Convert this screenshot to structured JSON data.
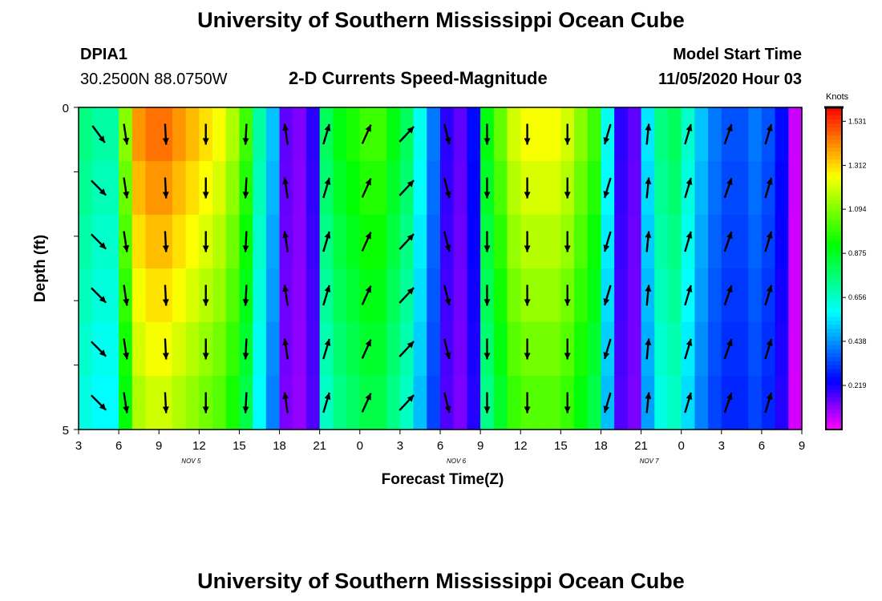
{
  "page": {
    "title_top": "University of Southern Mississippi Ocean Cube",
    "title_bottom": "University of Southern Mississippi Ocean Cube",
    "station": "DPIA1",
    "coords": "30.2500N 88.0750W",
    "plot_title": "2-D Currents Speed-Magnitude",
    "model_start_label": "Model Start Time",
    "model_start_value": "11/05/2020 Hour 03"
  },
  "chart_data": {
    "type": "heatmap",
    "title": "2-D Currents Speed-Magnitude",
    "xlabel": "Forecast Time(Z)",
    "ylabel": "Depth (ft)",
    "ylim": [
      0,
      5
    ],
    "y_tick_labels": [
      "0",
      "5"
    ],
    "x_tick_labels": [
      "3",
      "6",
      "9",
      "12",
      "15",
      "18",
      "21",
      "0",
      "3",
      "6",
      "9",
      "12",
      "15",
      "18",
      "21",
      "0",
      "3",
      "6",
      "9"
    ],
    "date_labels": [
      {
        "text": "NOV 5",
        "hour_index": 28
      },
      {
        "text": "NOV 6",
        "hour_index": 94
      },
      {
        "text": "NOV 7",
        "hour_index": 142
      }
    ],
    "forecast_hours": 54,
    "depth_levels": 6,
    "colorbar": {
      "unit": "Knots",
      "min": 0.0,
      "max": 1.6,
      "labels": [
        "1.531",
        "1.312",
        "1.094",
        "0.875",
        "0.656",
        "0.438",
        "0.219"
      ]
    },
    "speed_profile_knots": [
      0.75,
      0.7,
      0.7,
      1.1,
      1.4,
      1.45,
      1.45,
      1.4,
      1.35,
      1.3,
      1.25,
      1.15,
      1.0,
      0.7,
      0.5,
      0.15,
      0.12,
      0.2,
      0.8,
      0.9,
      0.95,
      1.0,
      1.0,
      0.9,
      0.8,
      0.6,
      0.4,
      0.2,
      0.15,
      0.25,
      0.9,
      1.05,
      1.2,
      1.25,
      1.25,
      1.25,
      1.2,
      1.1,
      1.0,
      0.6,
      0.2,
      0.15,
      0.55,
      0.75,
      0.8,
      0.65,
      0.5,
      0.4,
      0.35,
      0.35,
      0.4,
      0.35,
      0.25,
      0.05
    ],
    "arrows": [
      {
        "hour": 1,
        "dx": 0.85,
        "dy": 0.85,
        "surface_dx": 0.7,
        "surface_dy": 0.95
      },
      {
        "hour": 3,
        "dx": 0.15,
        "dy": 1.0
      },
      {
        "hour": 6,
        "dx": 0.05,
        "dy": 1.0
      },
      {
        "hour": 9,
        "dx": 0.0,
        "dy": 1.0
      },
      {
        "hour": 12,
        "dx": -0.05,
        "dy": 1.0
      },
      {
        "hour": 15,
        "dx": -0.15,
        "dy": -1.0
      },
      {
        "hour": 18,
        "dx": 0.3,
        "dy": -1.0
      },
      {
        "hour": 21,
        "dx": 0.45,
        "dy": -1.0
      },
      {
        "hour": 24,
        "dx": 0.75,
        "dy": -0.8
      },
      {
        "hour": 27,
        "dx": 0.25,
        "dy": 1.0
      },
      {
        "hour": 30,
        "dx": 0.0,
        "dy": 1.0
      },
      {
        "hour": 33,
        "dx": 0.0,
        "dy": 1.0
      },
      {
        "hour": 36,
        "dx": 0.0,
        "dy": 1.0
      },
      {
        "hour": 39,
        "dx": -0.3,
        "dy": 1.0
      },
      {
        "hour": 42,
        "dx": 0.1,
        "dy": -1.0
      },
      {
        "hour": 45,
        "dx": 0.3,
        "dy": -1.0
      },
      {
        "hour": 48,
        "dx": 0.35,
        "dy": -1.0
      },
      {
        "hour": 51,
        "dx": 0.3,
        "dy": -1.0
      }
    ]
  }
}
